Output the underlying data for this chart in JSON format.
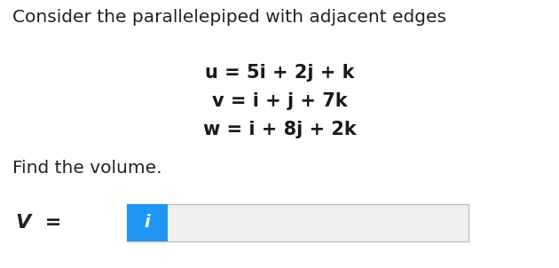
{
  "title_text": "Consider the parallelepiped with adjacent edges",
  "title_fontsize": 14.5,
  "title_color": "#222222",
  "eq1": "u = 5i + 2j + k",
  "eq2": "v = i + j + 7k",
  "eq3": "w = i + 8j + 2k",
  "eq_fontsize": 15,
  "eq_color": "#1a1a1a",
  "find_text": "Find the volume.",
  "find_fontsize": 14.5,
  "find_color": "#222222",
  "v_label": "V  =",
  "v_fontsize": 15,
  "bg_color": "#ffffff",
  "input_box_facecolor": "#f0f0f0",
  "input_box_edgecolor": "#c0c0c0",
  "blue_btn_color": "#2196F3",
  "italic_i_color": "#ffffff",
  "italic_i_fontsize": 14
}
